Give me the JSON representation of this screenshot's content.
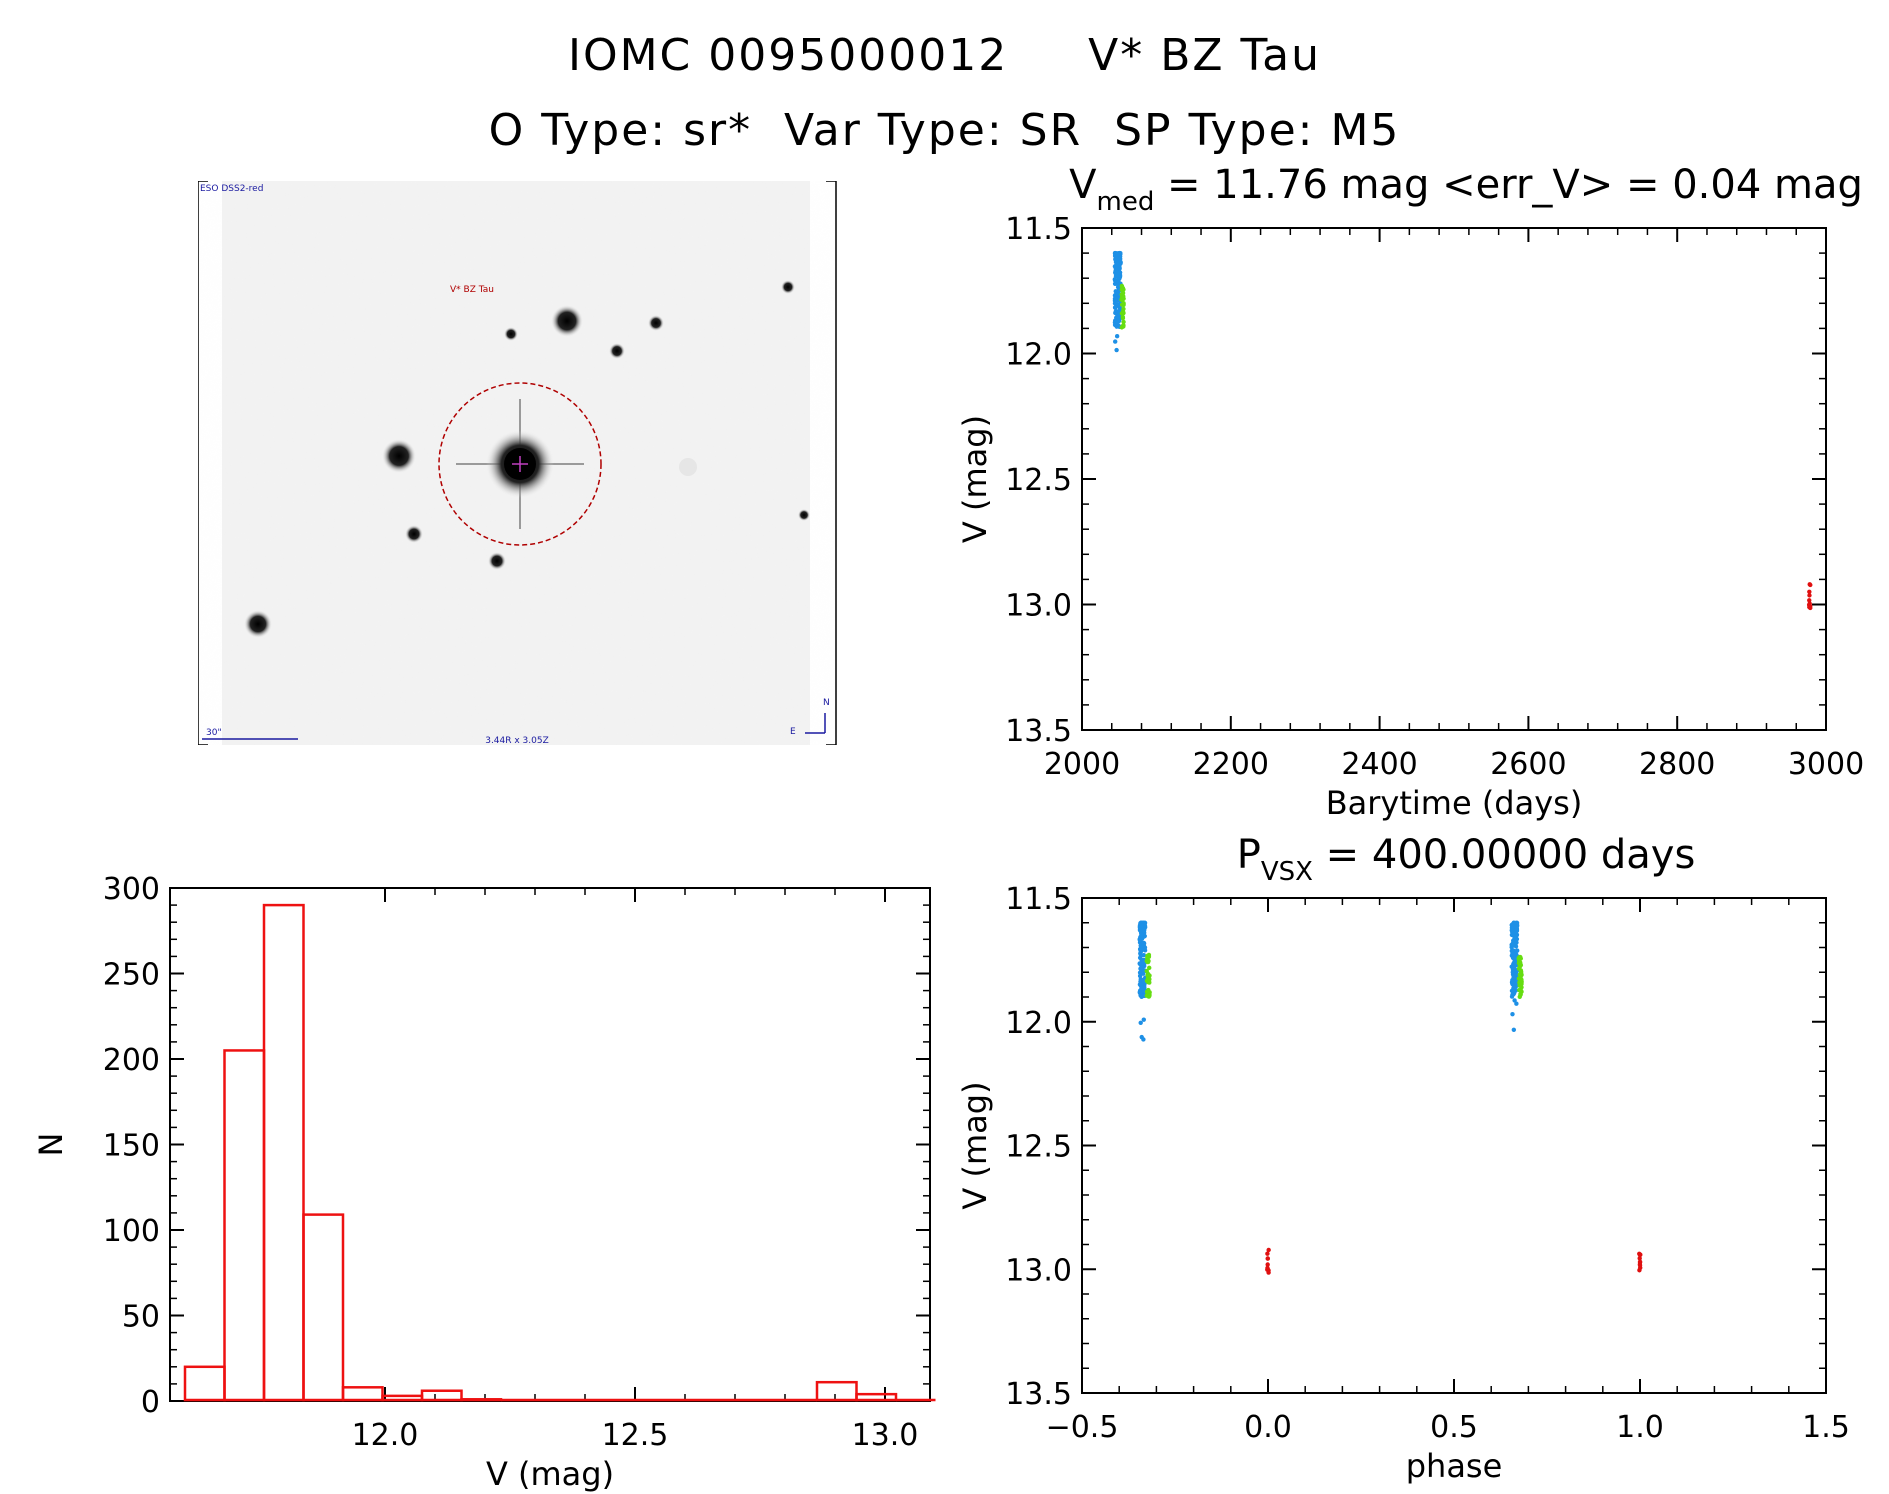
{
  "header": {
    "line1_id": "IOMC 0095000012",
    "line1_name": "V* BZ Tau",
    "line2": "O Type: sr*  Var Type: SR  SP Type: M5"
  },
  "finder_chart": {
    "survey_label": "ESO DSS2-red",
    "target_label": "V* BZ Tau",
    "scale_label": "30\"",
    "fov_label": "3.44R x 3.05Z",
    "compass": {
      "north": "N",
      "east": "E"
    }
  },
  "colors": {
    "omc_blue": "#1e90e6",
    "green": "#66dd11",
    "red": "#e01010",
    "hist": "#ee1111"
  },
  "chart_data": [
    {
      "type": "scatter",
      "id": "lightcurve",
      "title_main": "V",
      "title_sub": "med",
      "title_rest": "= 11.76 mag <err_V> = 0.04 mag",
      "xlabel": "Barytime (days)",
      "ylabel": "V (mag)",
      "xlim": [
        2000,
        3000
      ],
      "ylim": [
        13.5,
        11.5
      ],
      "y_inverted": true,
      "xticks": [
        2000,
        2200,
        2400,
        2600,
        2800,
        3000
      ],
      "yticks": [
        11.5,
        12.0,
        12.5,
        13.0,
        13.5
      ],
      "series": [
        {
          "color": "blue",
          "x_range": [
            2044,
            2052
          ],
          "y_range": [
            11.6,
            12.15
          ]
        },
        {
          "color": "green",
          "x_range": [
            2053,
            2056
          ],
          "y_range": [
            11.73,
            11.9
          ]
        },
        {
          "color": "red",
          "x_range": [
            2977,
            2979
          ],
          "y_range": [
            12.9,
            13.02
          ]
        }
      ]
    },
    {
      "type": "bar",
      "id": "histogram",
      "xlabel": "V (mag)",
      "ylabel": "N",
      "xlim": [
        11.57,
        13.09
      ],
      "ylim": [
        0,
        300
      ],
      "xticks": [
        12.0,
        12.5,
        13.0
      ],
      "yticks": [
        0,
        50,
        100,
        150,
        200,
        250,
        300
      ],
      "bin_width": 0.079,
      "bin_starts": [
        11.6,
        11.679,
        11.758,
        11.837,
        11.916,
        11.995,
        12.074,
        12.153,
        12.232,
        12.311,
        12.39,
        12.469,
        12.548,
        12.627,
        12.706,
        12.785,
        12.864,
        12.943,
        13.022
      ],
      "values": [
        20,
        205,
        290,
        109,
        8,
        3,
        6,
        1,
        0,
        0,
        0,
        0,
        0,
        0,
        0,
        0,
        11,
        4,
        0
      ]
    },
    {
      "type": "scatter",
      "id": "phased",
      "title_main": "P",
      "title_sub": "VSX",
      "title_rest": "= 400.00000 days",
      "xlabel": "phase",
      "ylabel": "V (mag)",
      "xlim": [
        -0.5,
        1.5
      ],
      "ylim": [
        13.5,
        11.5
      ],
      "y_inverted": true,
      "xticks": [
        -0.5,
        0.0,
        0.5,
        1.0,
        1.5
      ],
      "yticks": [
        11.5,
        12.0,
        12.5,
        13.0,
        13.5
      ],
      "series": [
        {
          "color": "blue",
          "x_range": [
            -0.345,
            -0.33
          ],
          "y_range": [
            11.6,
            12.15
          ]
        },
        {
          "color": "green",
          "x_range": [
            -0.326,
            -0.318
          ],
          "y_range": [
            11.73,
            11.9
          ]
        },
        {
          "color": "red",
          "x_range": [
            -0.002,
            0.002
          ],
          "y_range": [
            12.9,
            13.02
          ]
        },
        {
          "color": "blue",
          "x_range": [
            0.655,
            0.67
          ],
          "y_range": [
            11.6,
            12.15
          ]
        },
        {
          "color": "green",
          "x_range": [
            0.674,
            0.682
          ],
          "y_range": [
            11.73,
            11.9
          ]
        },
        {
          "color": "red",
          "x_range": [
            0.998,
            1.002
          ],
          "y_range": [
            12.9,
            13.02
          ]
        }
      ]
    }
  ]
}
